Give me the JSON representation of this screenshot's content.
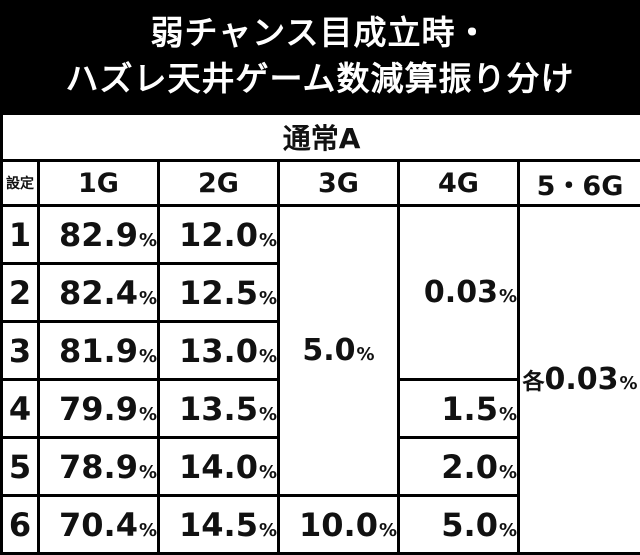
{
  "title": {
    "line1": "弱チャンス目成立時・",
    "line2": "ハズレ天井ゲーム数減算振り分け"
  },
  "table": {
    "mode_label": "通常A",
    "setting_header": "設定",
    "columns": [
      "1G",
      "2G",
      "3G",
      "4G",
      "5・6G"
    ],
    "percent_symbol": "%",
    "rows": [
      {
        "setting": "1",
        "g1": "82.9",
        "g2": "12.0"
      },
      {
        "setting": "2",
        "g1": "82.4",
        "g2": "12.5"
      },
      {
        "setting": "3",
        "g1": "81.9",
        "g2": "13.0"
      },
      {
        "setting": "4",
        "g1": "79.9",
        "g2": "13.5"
      },
      {
        "setting": "5",
        "g1": "78.9",
        "g2": "14.0"
      },
      {
        "setting": "6",
        "g1": "70.4",
        "g2": "14.5"
      }
    ],
    "g3_settings_1_5": "5.0",
    "g3_setting_6": "10.0",
    "g4_settings_1_3": "0.03",
    "g4_setting_4": "1.5",
    "g4_setting_5": "2.0",
    "g4_setting_6": "5.0",
    "g56_each_prefix": "各",
    "g56_all": "0.03"
  },
  "colors": {
    "header_bg": "#e9c8f7",
    "page_bg": "#000000",
    "cell_bg": "#ffffff"
  }
}
